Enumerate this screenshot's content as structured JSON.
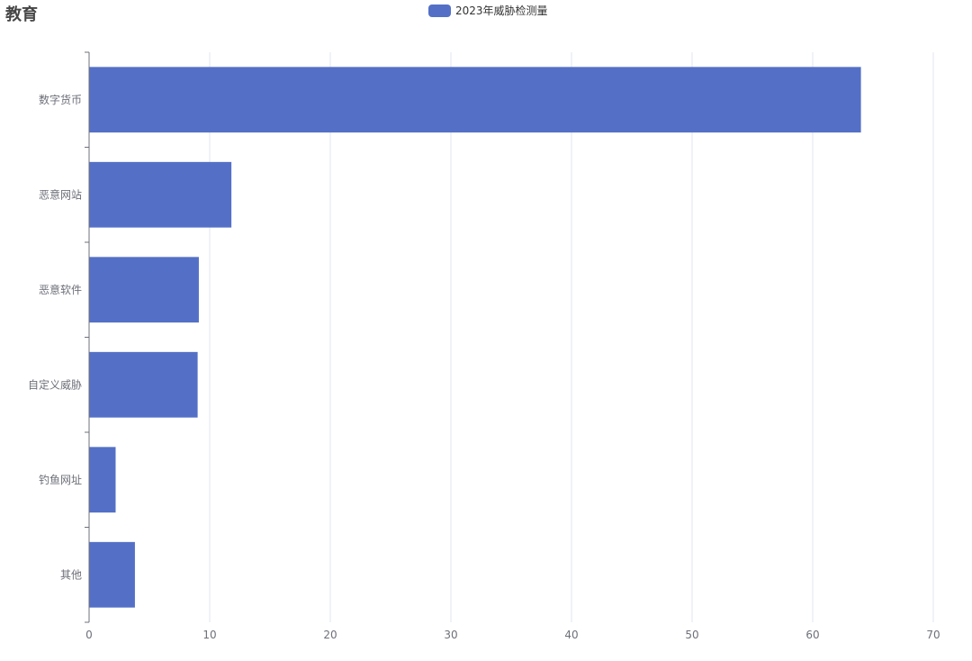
{
  "chart_data": {
    "type": "bar",
    "orientation": "horizontal",
    "title": "教育",
    "categories": [
      "数字货币",
      "恶意网站",
      "恶意软件",
      "自定义威胁",
      "钓鱼网址",
      "其他"
    ],
    "series": [
      {
        "name": "2023年威胁检测量",
        "values": [
          64,
          11.8,
          9.1,
          9.0,
          2.2,
          3.8
        ],
        "color": "#5470c6"
      }
    ],
    "xlim": [
      0,
      70
    ],
    "xticks": [
      0,
      10,
      20,
      30,
      40,
      50,
      60,
      70
    ],
    "grid": true,
    "legend": "top-center"
  }
}
